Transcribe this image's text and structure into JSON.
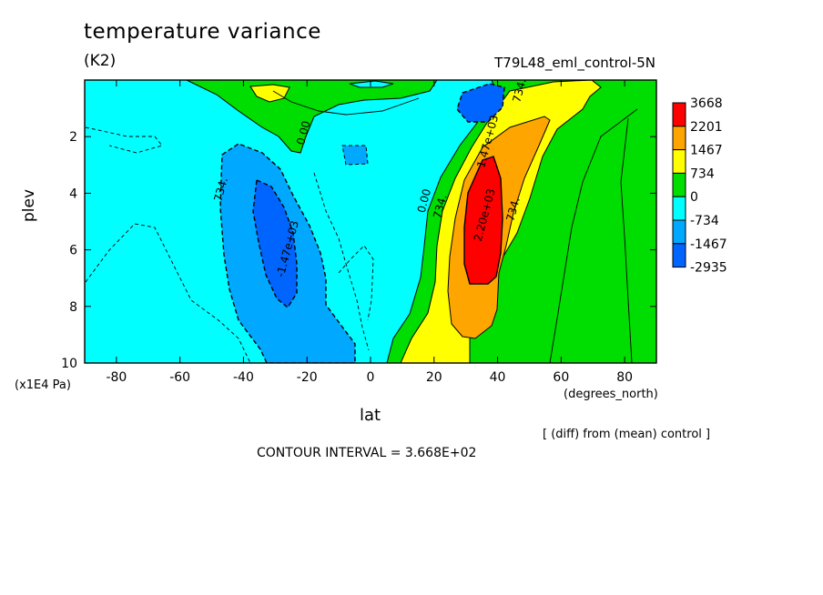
{
  "header": {
    "title": "temperature variance",
    "units": "(K2)",
    "run": "T79L48_eml_control-5N"
  },
  "footer": {
    "diff_note": "[ (diff) from (mean) control ]",
    "contour_interval": "CONTOUR INTERVAL = 3.668E+02"
  },
  "chart_data": {
    "type": "contour",
    "xlabel": "lat",
    "xunit": "(degrees_north)",
    "ylabel": "plev",
    "yunit": "(x1E4 Pa)",
    "xlim": [
      -90,
      90
    ],
    "ylim": [
      10,
      0
    ],
    "xticks": [
      -80,
      -60,
      -40,
      -20,
      0,
      20,
      40,
      60,
      80
    ],
    "yticks": [
      2,
      4,
      6,
      8,
      10
    ],
    "contour_interval": 366.8,
    "colorbar": {
      "levels": [
        "3668",
        "2201",
        "1467",
        "734",
        "0",
        "-734",
        "-1467",
        "-2935"
      ],
      "colors": [
        "#ff0000",
        "#ffa500",
        "#ffff00",
        "#00dd00",
        "#00ffff",
        "#00a8ff",
        "#0064ff"
      ]
    },
    "contour_labels": [
      {
        "text": "0.00",
        "lat": -20,
        "plev": 1.9
      },
      {
        "text": "734.",
        "lat": -46,
        "plev": 3.9
      },
      {
        "text": "-1.47e+03",
        "lat": -25,
        "plev": 6.0
      },
      {
        "text": "734.",
        "lat": 48,
        "plev": 0.4
      },
      {
        "text": "1.47e+03",
        "lat": 38,
        "plev": 2.2
      },
      {
        "text": "0.00",
        "lat": 18,
        "plev": 4.3
      },
      {
        "text": "734.",
        "lat": 23,
        "plev": 4.5
      },
      {
        "text": "2.20e+03",
        "lat": 37,
        "plev": 4.8
      },
      {
        "text": "734.",
        "lat": 46,
        "plev": 4.6
      }
    ]
  }
}
